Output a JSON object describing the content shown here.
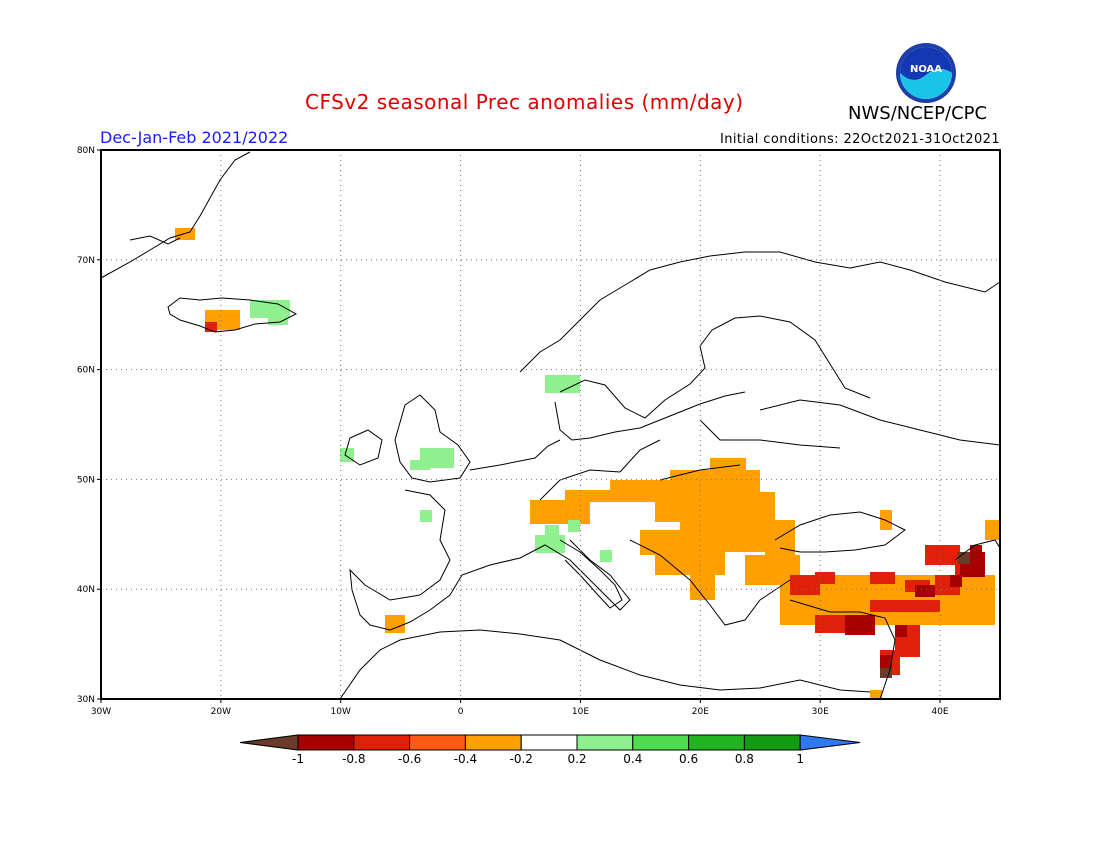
{
  "header": {
    "title": "CFSv2 seasonal Prec anomalies (mm/day)",
    "agency": "NWS/NCEP/CPC",
    "logo_text": "NOAA",
    "season": "Dec-Jan-Feb 2021/2022",
    "initial_conditions": "Initial conditions: 22Oct2021-31Oct2021"
  },
  "map": {
    "lon_range": [
      -30,
      45
    ],
    "lat_range": [
      30,
      80
    ],
    "lon_ticks": [
      "30W",
      "20W",
      "10W",
      "0",
      "10E",
      "20E",
      "30E",
      "40E"
    ],
    "lat_ticks": [
      "30N",
      "40N",
      "50N",
      "60N",
      "70N",
      "80N"
    ],
    "grid": "dotted"
  },
  "colorbar": {
    "labels": [
      "-1",
      "-0.8",
      "-0.6",
      "-0.4",
      "-0.2",
      "0.2",
      "0.4",
      "0.6",
      "0.8",
      "1"
    ],
    "colors": [
      "#6b3b2a",
      "#a80000",
      "#e0200a",
      "#ff5a14",
      "#ff9f00",
      "#ffffff",
      "#8ff08f",
      "#4fdc4f",
      "#22b422",
      "#139b13",
      "#2e78f0"
    ]
  }
}
